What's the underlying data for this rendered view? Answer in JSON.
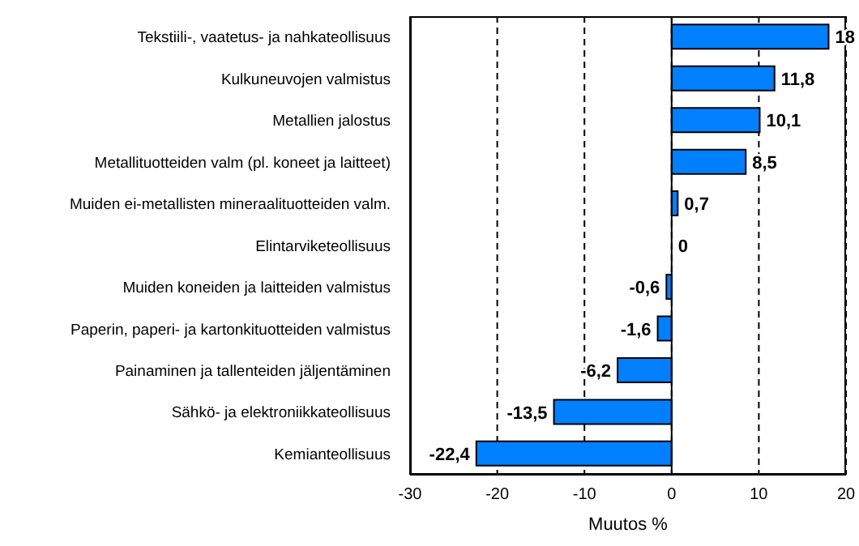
{
  "chart_data": {
    "type": "bar",
    "orientation": "horizontal",
    "xlabel": "Muutos %",
    "categories": [
      "Tekstiili-, vaatetus- ja nahkateollisuus",
      "Kulkuneuvojen valmistus",
      "Metallien jalostus",
      "Metallituotteiden valm (pl. koneet ja laitteet)",
      "Muiden ei-metallisten mineraalituotteiden valm.",
      "Elintarviketeollisuus",
      "Muiden koneiden ja laitteiden valmistus",
      "Paperin, paperi- ja kartonkituotteiden valmistus",
      "Painaminen ja tallenteiden jäljentäminen",
      "Sähkö- ja elektroniikkateollisuus",
      "Kemianteollisuus"
    ],
    "values": [
      18,
      11.8,
      10.1,
      8.5,
      0.7,
      0,
      -0.6,
      -1.6,
      -6.2,
      -13.5,
      -22.4
    ],
    "value_labels": [
      "18",
      "11,8",
      "10,1",
      "8,5",
      "0,7",
      "0",
      "-0,6",
      "-1,6",
      "-6,2",
      "-13,5",
      "-22,4"
    ],
    "color": "#0080ff",
    "xlim": [
      -30,
      20
    ],
    "xticks": [
      -30,
      -20,
      -10,
      0,
      10,
      20
    ],
    "grid": "x"
  }
}
